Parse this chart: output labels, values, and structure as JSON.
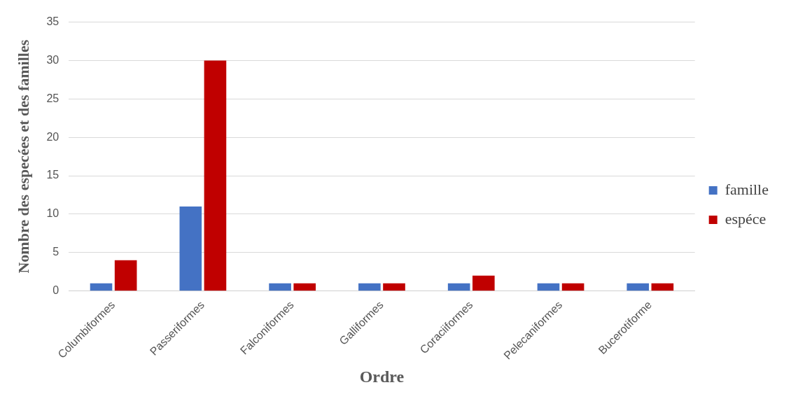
{
  "chart_data": {
    "type": "bar",
    "xlabel": "Ordre",
    "ylabel": "Nombre des especées et des familles",
    "categories": [
      "Columbiformes",
      "Passeriformes",
      "Falconiformes",
      "Galliformes",
      "Coraciiformes",
      "Pelecaniformes",
      "Bucerotiforme"
    ],
    "series": [
      {
        "name": "famille",
        "color": "#4472c4",
        "values": [
          1,
          11,
          1,
          1,
          1,
          1,
          1
        ]
      },
      {
        "name": "espéce",
        "color": "#c00000",
        "values": [
          4,
          30,
          1,
          1,
          2,
          1,
          1
        ]
      }
    ],
    "ylim": [
      0,
      35
    ],
    "yticks": [
      0,
      5,
      10,
      15,
      20,
      25,
      30,
      35
    ],
    "grid": "y",
    "legend": "right"
  }
}
